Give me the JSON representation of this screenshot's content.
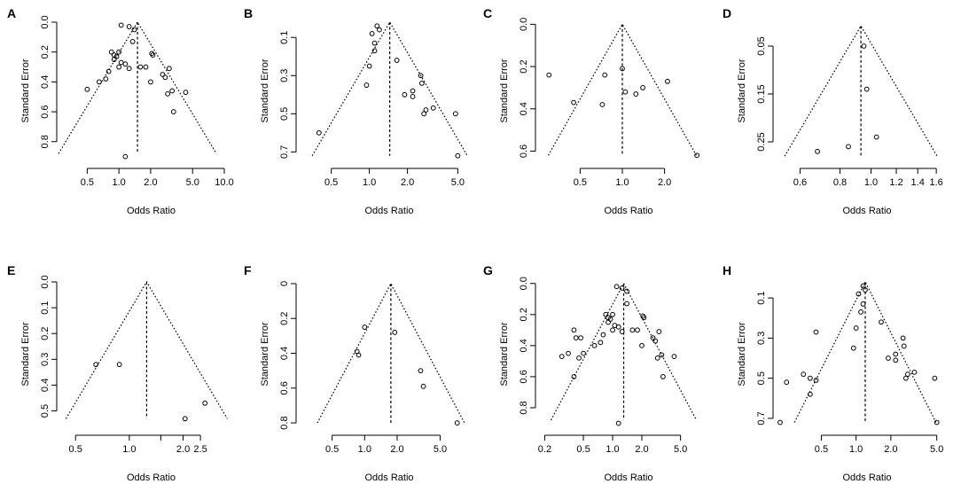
{
  "chart_data": [
    {
      "type": "scatter",
      "letter": "A",
      "xlabel": "Odds Ratio",
      "ylabel": "Standard Error",
      "xlim": [
        0.3,
        10.0
      ],
      "ylim": [
        0.92,
        0.0
      ],
      "xticks": [
        0.5,
        1.0,
        2.0,
        5.0,
        10.0
      ],
      "xtick_labels": [
        "0.5",
        "1.0",
        "2.0",
        "5.0",
        "10.0"
      ],
      "yticks": [
        0.0,
        0.2,
        0.4,
        0.6,
        0.8
      ],
      "ytick_labels": [
        "0.0",
        "0.2",
        "0.4",
        "0.6",
        "0.8"
      ],
      "center": 1.5,
      "funnel_apex": 0.0,
      "funnel_base": 0.88,
      "points": [
        [
          1.05,
          0.02
        ],
        [
          1.25,
          0.03
        ],
        [
          1.4,
          0.05
        ],
        [
          1.35,
          0.13
        ],
        [
          0.85,
          0.2
        ],
        [
          0.9,
          0.22
        ],
        [
          0.95,
          0.23
        ],
        [
          1.0,
          0.2
        ],
        [
          0.9,
          0.25
        ],
        [
          1.05,
          0.27
        ],
        [
          1.0,
          0.3
        ],
        [
          1.15,
          0.28
        ],
        [
          1.25,
          0.31
        ],
        [
          0.8,
          0.33
        ],
        [
          0.75,
          0.38
        ],
        [
          0.65,
          0.4
        ],
        [
          0.5,
          0.45
        ],
        [
          1.6,
          0.3
        ],
        [
          1.8,
          0.3
        ],
        [
          2.05,
          0.21
        ],
        [
          2.1,
          0.22
        ],
        [
          2.0,
          0.4
        ],
        [
          2.6,
          0.35
        ],
        [
          2.75,
          0.37
        ],
        [
          3.0,
          0.31
        ],
        [
          2.9,
          0.48
        ],
        [
          3.2,
          0.46
        ],
        [
          3.3,
          0.6
        ],
        [
          4.3,
          0.47
        ],
        [
          1.15,
          0.9
        ]
      ]
    },
    {
      "type": "scatter",
      "letter": "B",
      "xlabel": "Odds Ratio",
      "ylabel": "Standard Error",
      "xlim": [
        0.3,
        5.3
      ],
      "ylim": [
        0.74,
        0.02
      ],
      "xticks": [
        0.5,
        1.0,
        2.0,
        5.0
      ],
      "xtick_labels": [
        "0.5",
        "1.0",
        "2.0",
        "5.0"
      ],
      "yticks": [
        0.1,
        0.3,
        0.5,
        0.7
      ],
      "ytick_labels": [
        "0.1",
        "0.3",
        "0.5",
        "0.7"
      ],
      "center": 1.45,
      "funnel_apex": 0.02,
      "funnel_base": 0.72,
      "points": [
        [
          1.15,
          0.04
        ],
        [
          1.2,
          0.06
        ],
        [
          1.05,
          0.08
        ],
        [
          1.1,
          0.13
        ],
        [
          1.1,
          0.17
        ],
        [
          1.0,
          0.25
        ],
        [
          0.95,
          0.35
        ],
        [
          0.4,
          0.6
        ],
        [
          1.65,
          0.22
        ],
        [
          1.9,
          0.4
        ],
        [
          2.2,
          0.41
        ],
        [
          2.2,
          0.38
        ],
        [
          2.55,
          0.3
        ],
        [
          2.6,
          0.34
        ],
        [
          2.7,
          0.5
        ],
        [
          2.8,
          0.48
        ],
        [
          3.2,
          0.47
        ],
        [
          4.8,
          0.5
        ],
        [
          5.0,
          0.72
        ]
      ]
    },
    {
      "type": "scatter",
      "letter": "C",
      "xlabel": "Odds Ratio",
      "ylabel": "Standard Error",
      "xlim": [
        0.27,
        3.6
      ],
      "ylim": [
        0.64,
        -0.01
      ],
      "xticks": [
        0.5,
        1.0,
        2.0
      ],
      "xtick_labels": [
        "0.5",
        "1.0",
        "2.0"
      ],
      "yticks": [
        0.0,
        0.2,
        0.4,
        0.6
      ],
      "ytick_labels": [
        "0.0",
        "0.2",
        "0.4",
        "0.6"
      ],
      "center": 1.0,
      "funnel_apex": 0.0,
      "funnel_base": 0.62,
      "points": [
        [
          0.3,
          0.24
        ],
        [
          0.45,
          0.37
        ],
        [
          0.75,
          0.24
        ],
        [
          0.72,
          0.38
        ],
        [
          1.0,
          0.21
        ],
        [
          1.05,
          0.32
        ],
        [
          1.25,
          0.33
        ],
        [
          1.4,
          0.3
        ],
        [
          2.1,
          0.27
        ],
        [
          3.4,
          0.62
        ]
      ]
    },
    {
      "type": "scatter",
      "letter": "D",
      "xlabel": "Odds Ratio",
      "ylabel": "Standard Error",
      "xlim": [
        0.52,
        1.64
      ],
      "ylim": [
        0.287,
        0.0
      ],
      "xticks": [
        0.6,
        0.8,
        1.0,
        1.2,
        1.4,
        1.6
      ],
      "xtick_labels": [
        "0.6",
        "0.8",
        "1.0",
        "1.2",
        "1.4",
        "1.6"
      ],
      "yticks": [
        0.05,
        0.15,
        0.25
      ],
      "ytick_labels": [
        "0.05",
        "0.15",
        "0.25"
      ],
      "center": 0.93,
      "funnel_apex": 0.008,
      "funnel_base": 0.28,
      "points": [
        [
          0.95,
          0.05
        ],
        [
          0.97,
          0.14
        ],
        [
          1.04,
          0.24
        ],
        [
          0.85,
          0.26
        ],
        [
          0.68,
          0.27
        ]
      ]
    },
    {
      "type": "scatter",
      "letter": "E",
      "xlabel": "Odds Ratio",
      "ylabel": "Standard Error",
      "xlim": [
        0.43,
        3.4
      ],
      "ylim": [
        0.56,
        0.0
      ],
      "xticks": [
        0.5,
        1.0,
        1.5,
        2.0,
        2.5
      ],
      "xtick_labels": [
        "0.5",
        "1.0",
        "",
        "2.0",
        "2.5"
      ],
      "yticks": [
        0.0,
        0.1,
        0.2,
        0.3,
        0.4,
        0.5
      ],
      "ytick_labels": [
        "0.0",
        "0.1",
        "0.2",
        "0.3",
        "0.4",
        "0.5"
      ],
      "center": 1.25,
      "funnel_apex": 0.0,
      "funnel_base": 0.53,
      "points": [
        [
          0.65,
          0.32
        ],
        [
          0.88,
          0.32
        ],
        [
          2.05,
          0.53
        ],
        [
          2.65,
          0.47
        ]
      ]
    },
    {
      "type": "scatter",
      "letter": "F",
      "xlabel": "Odds Ratio",
      "ylabel": "Standard Error",
      "xlim": [
        0.27,
        7.8
      ],
      "ylim": [
        0.82,
        -0.01
      ],
      "xticks": [
        0.5,
        1.0,
        2.0,
        5.0
      ],
      "xtick_labels": [
        "0.5",
        "1.0",
        "2.0",
        "5.0"
      ],
      "yticks": [
        0.0,
        0.2,
        0.4,
        0.6,
        0.8
      ],
      "ytick_labels": [
        "0",
        "0.2",
        "0.4",
        "0.6",
        "0.8"
      ],
      "center": 1.75,
      "funnel_apex": 0.0,
      "funnel_base": 0.8,
      "points": [
        [
          1.0,
          0.25
        ],
        [
          0.85,
          0.39
        ],
        [
          0.88,
          0.41
        ],
        [
          1.9,
          0.28
        ],
        [
          3.3,
          0.5
        ],
        [
          3.5,
          0.59
        ],
        [
          7.2,
          0.8
        ]
      ]
    },
    {
      "type": "scatter",
      "letter": "G",
      "xlabel": "Odds Ratio",
      "ylabel": "Standard Error",
      "xlim": [
        0.19,
        8.0
      ],
      "ylim": [
        0.92,
        -0.01
      ],
      "xticks": [
        0.2,
        0.5,
        1.0,
        2.0,
        5.0
      ],
      "xtick_labels": [
        "0.2",
        "0.5",
        "1.0",
        "2.0",
        "5.0"
      ],
      "yticks": [
        0.0,
        0.2,
        0.4,
        0.6,
        0.8
      ],
      "ytick_labels": [
        "0.0",
        "0.2",
        "0.4",
        "0.6",
        "0.8"
      ],
      "center": 1.3,
      "funnel_apex": 0.0,
      "funnel_base": 0.88,
      "points": [
        [
          1.1,
          0.02
        ],
        [
          1.25,
          0.03
        ],
        [
          1.4,
          0.05
        ],
        [
          1.4,
          0.13
        ],
        [
          0.85,
          0.2
        ],
        [
          0.9,
          0.22
        ],
        [
          0.95,
          0.23
        ],
        [
          1.0,
          0.2
        ],
        [
          0.9,
          0.25
        ],
        [
          1.05,
          0.27
        ],
        [
          1.0,
          0.3
        ],
        [
          1.15,
          0.28
        ],
        [
          1.25,
          0.31
        ],
        [
          0.8,
          0.33
        ],
        [
          0.75,
          0.38
        ],
        [
          0.65,
          0.4
        ],
        [
          0.5,
          0.45
        ],
        [
          1.6,
          0.3
        ],
        [
          1.8,
          0.3
        ],
        [
          2.05,
          0.21
        ],
        [
          2.1,
          0.22
        ],
        [
          2.0,
          0.4
        ],
        [
          2.6,
          0.35
        ],
        [
          2.75,
          0.37
        ],
        [
          3.0,
          0.31
        ],
        [
          2.9,
          0.48
        ],
        [
          3.2,
          0.46
        ],
        [
          3.3,
          0.6
        ],
        [
          4.3,
          0.47
        ],
        [
          0.4,
          0.3
        ],
        [
          0.42,
          0.35
        ],
        [
          0.47,
          0.35
        ],
        [
          0.45,
          0.48
        ],
        [
          0.35,
          0.45
        ],
        [
          0.4,
          0.6
        ],
        [
          0.3,
          0.47
        ],
        [
          1.15,
          0.9
        ]
      ]
    },
    {
      "type": "scatter",
      "letter": "H",
      "xlabel": "Odds Ratio",
      "ylabel": "Standard Error",
      "xlim": [
        0.22,
        5.3
      ],
      "ylim": [
        0.74,
        0.02
      ],
      "xticks": [
        0.5,
        1.0,
        2.0,
        5.0
      ],
      "xtick_labels": [
        "0.5",
        "1.0",
        "2.0",
        "5.0"
      ],
      "yticks": [
        0.1,
        0.3,
        0.5,
        0.7
      ],
      "ytick_labels": [
        "0.1",
        "0.3",
        "0.5",
        "0.7"
      ],
      "center": 1.2,
      "funnel_apex": 0.02,
      "funnel_base": 0.72,
      "points": [
        [
          1.15,
          0.04
        ],
        [
          1.2,
          0.06
        ],
        [
          1.05,
          0.08
        ],
        [
          1.15,
          0.13
        ],
        [
          1.1,
          0.17
        ],
        [
          1.0,
          0.25
        ],
        [
          0.95,
          0.35
        ],
        [
          0.45,
          0.27
        ],
        [
          0.35,
          0.48
        ],
        [
          0.4,
          0.5
        ],
        [
          0.45,
          0.51
        ],
        [
          0.4,
          0.58
        ],
        [
          0.25,
          0.52
        ],
        [
          0.22,
          0.72
        ],
        [
          1.65,
          0.22
        ],
        [
          1.9,
          0.4
        ],
        [
          2.2,
          0.41
        ],
        [
          2.2,
          0.38
        ],
        [
          2.55,
          0.3
        ],
        [
          2.6,
          0.34
        ],
        [
          2.7,
          0.5
        ],
        [
          2.8,
          0.48
        ],
        [
          3.2,
          0.47
        ],
        [
          4.8,
          0.5
        ],
        [
          5.0,
          0.72
        ]
      ]
    }
  ]
}
